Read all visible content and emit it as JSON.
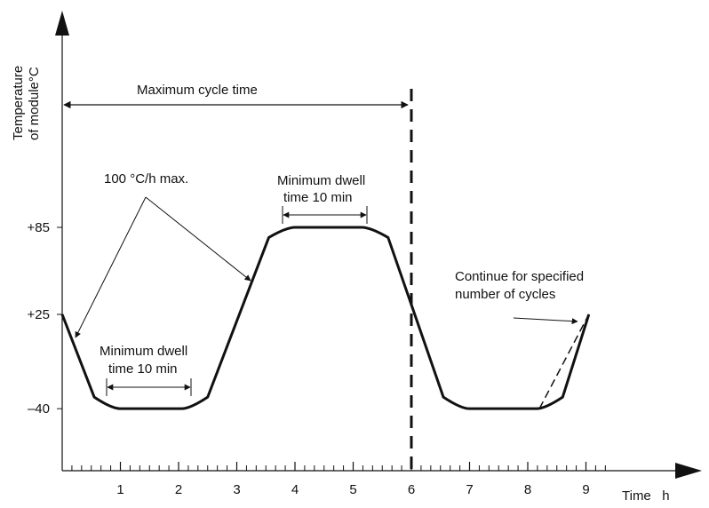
{
  "chart_data": {
    "type": "line",
    "y_axis_label_lines": [
      "Temperature",
      "of module°C"
    ],
    "x_axis_label": "Time   h",
    "x_ticks": [
      "1",
      "2",
      "3",
      "4",
      "5",
      "6",
      "7",
      "8",
      "9"
    ],
    "y_ticks": [
      "+85",
      "+25",
      "–40"
    ],
    "xlim": [
      0,
      9.5
    ],
    "ylim": [
      -90,
      200
    ],
    "series": [
      {
        "x": [
          0,
          0.55,
          0.85,
          2.2,
          2.5,
          3.55,
          3.85,
          5.3,
          5.6,
          6.55,
          6.85,
          8.3,
          8.6,
          9.05
        ],
        "y": [
          25,
          -32,
          -40,
          -40,
          -32,
          78,
          85,
          85,
          78,
          -32,
          -40,
          -40,
          -32,
          25
        ]
      }
    ],
    "dashed_extension": {
      "x": [
        8.2,
        9.05
      ],
      "y": [
        -40,
        25
      ]
    },
    "cycle_end_x": 6,
    "annotations": {
      "max_cycle": "Maximum cycle time",
      "ramp_rate": "100 °C/h max.",
      "dwell_top_line1": "Minimum dwell",
      "dwell_top_line2": "time 10 min",
      "dwell_bottom_line1": "Minimum dwell",
      "dwell_bottom_line2": "time 10 min",
      "continue_line1": "Continue for specified",
      "continue_line2": "number of cycles"
    }
  }
}
